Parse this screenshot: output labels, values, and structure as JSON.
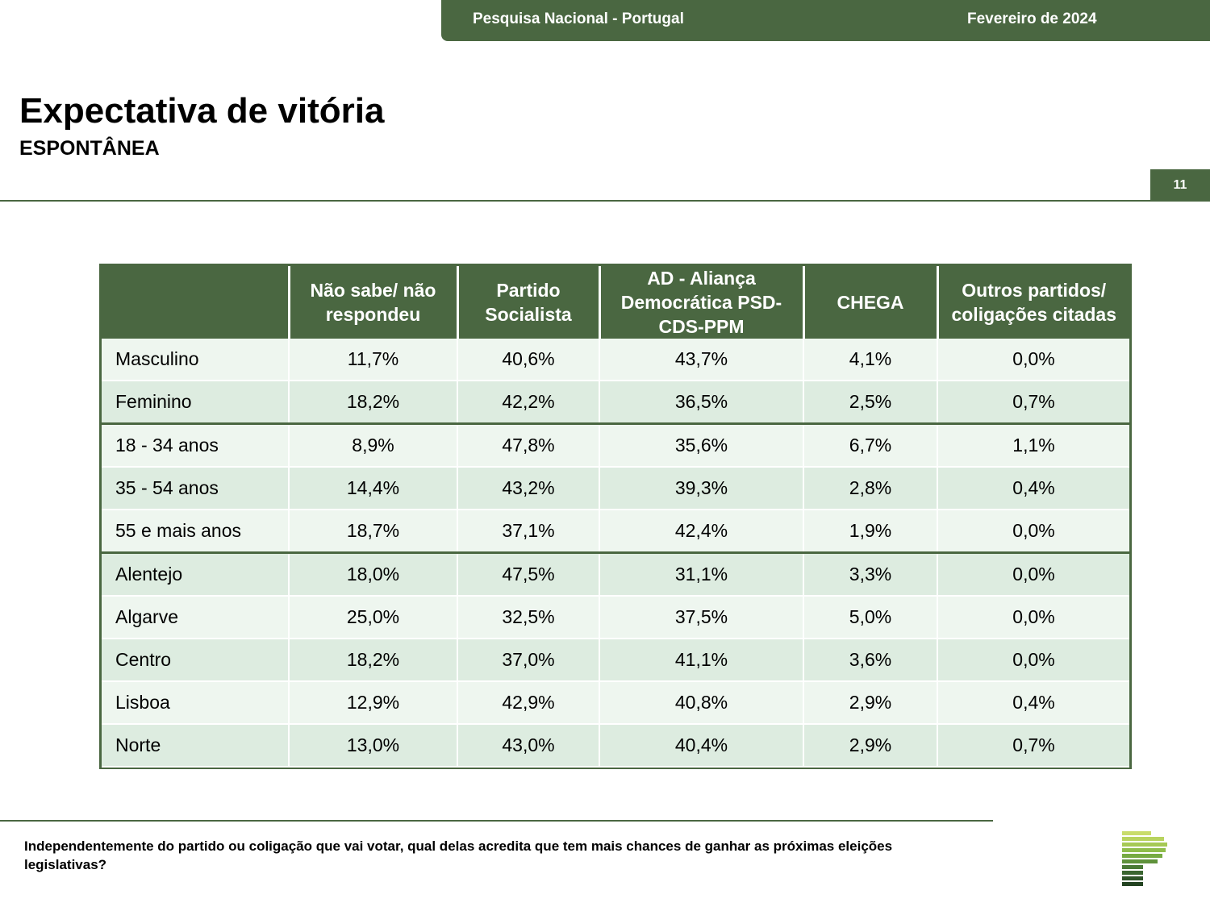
{
  "header": {
    "survey": "Pesquisa Nacional - Portugal",
    "date": "Fevereiro de 2024"
  },
  "title": "Expectativa de vitória",
  "subtitle": "ESPONTÂNEA",
  "page_number": "11",
  "table": {
    "columns": [
      "",
      "Não sabe/ não respondeu",
      "Partido Socialista",
      "AD - Aliança Democrática PSD-CDS-PPM",
      "CHEGA",
      "Outros partidos/ coligações citadas"
    ],
    "rows": [
      {
        "label": "Masculino",
        "values": [
          "11,7%",
          "40,6%",
          "43,7%",
          "4,1%",
          "0,0%"
        ]
      },
      {
        "label": "Feminino",
        "values": [
          "18,2%",
          "42,2%",
          "36,5%",
          "2,5%",
          "0,7%"
        ]
      },
      {
        "label": "18 - 34 anos",
        "values": [
          "8,9%",
          "47,8%",
          "35,6%",
          "6,7%",
          "1,1%"
        ]
      },
      {
        "label": "35 - 54 anos",
        "values": [
          "14,4%",
          "43,2%",
          "39,3%",
          "2,8%",
          "0,4%"
        ]
      },
      {
        "label": "55 e mais anos",
        "values": [
          "18,7%",
          "37,1%",
          "42,4%",
          "1,9%",
          "0,0%"
        ]
      },
      {
        "label": "Alentejo",
        "values": [
          "18,0%",
          "47,5%",
          "31,1%",
          "3,3%",
          "0,0%"
        ]
      },
      {
        "label": "Algarve",
        "values": [
          "25,0%",
          "32,5%",
          "37,5%",
          "5,0%",
          "0,0%"
        ]
      },
      {
        "label": "Centro",
        "values": [
          "18,2%",
          "37,0%",
          "41,1%",
          "3,6%",
          "0,0%"
        ]
      },
      {
        "label": "Lisboa",
        "values": [
          "12,9%",
          "42,9%",
          "40,8%",
          "2,9%",
          "0,4%"
        ]
      },
      {
        "label": "Norte",
        "values": [
          "13,0%",
          "43,0%",
          "40,4%",
          "2,9%",
          "0,7%"
        ]
      }
    ]
  },
  "footer": {
    "question": "Independentemente do partido ou coligação que vai votar, qual delas acredita que tem mais chances de ganhar as próximas eleições legislativas?",
    "logo_icon": "striped-p-logo-icon"
  },
  "colors": {
    "accent": "#4a6741",
    "row_light": "#eef6ef",
    "row_dark": "#ddece0"
  }
}
